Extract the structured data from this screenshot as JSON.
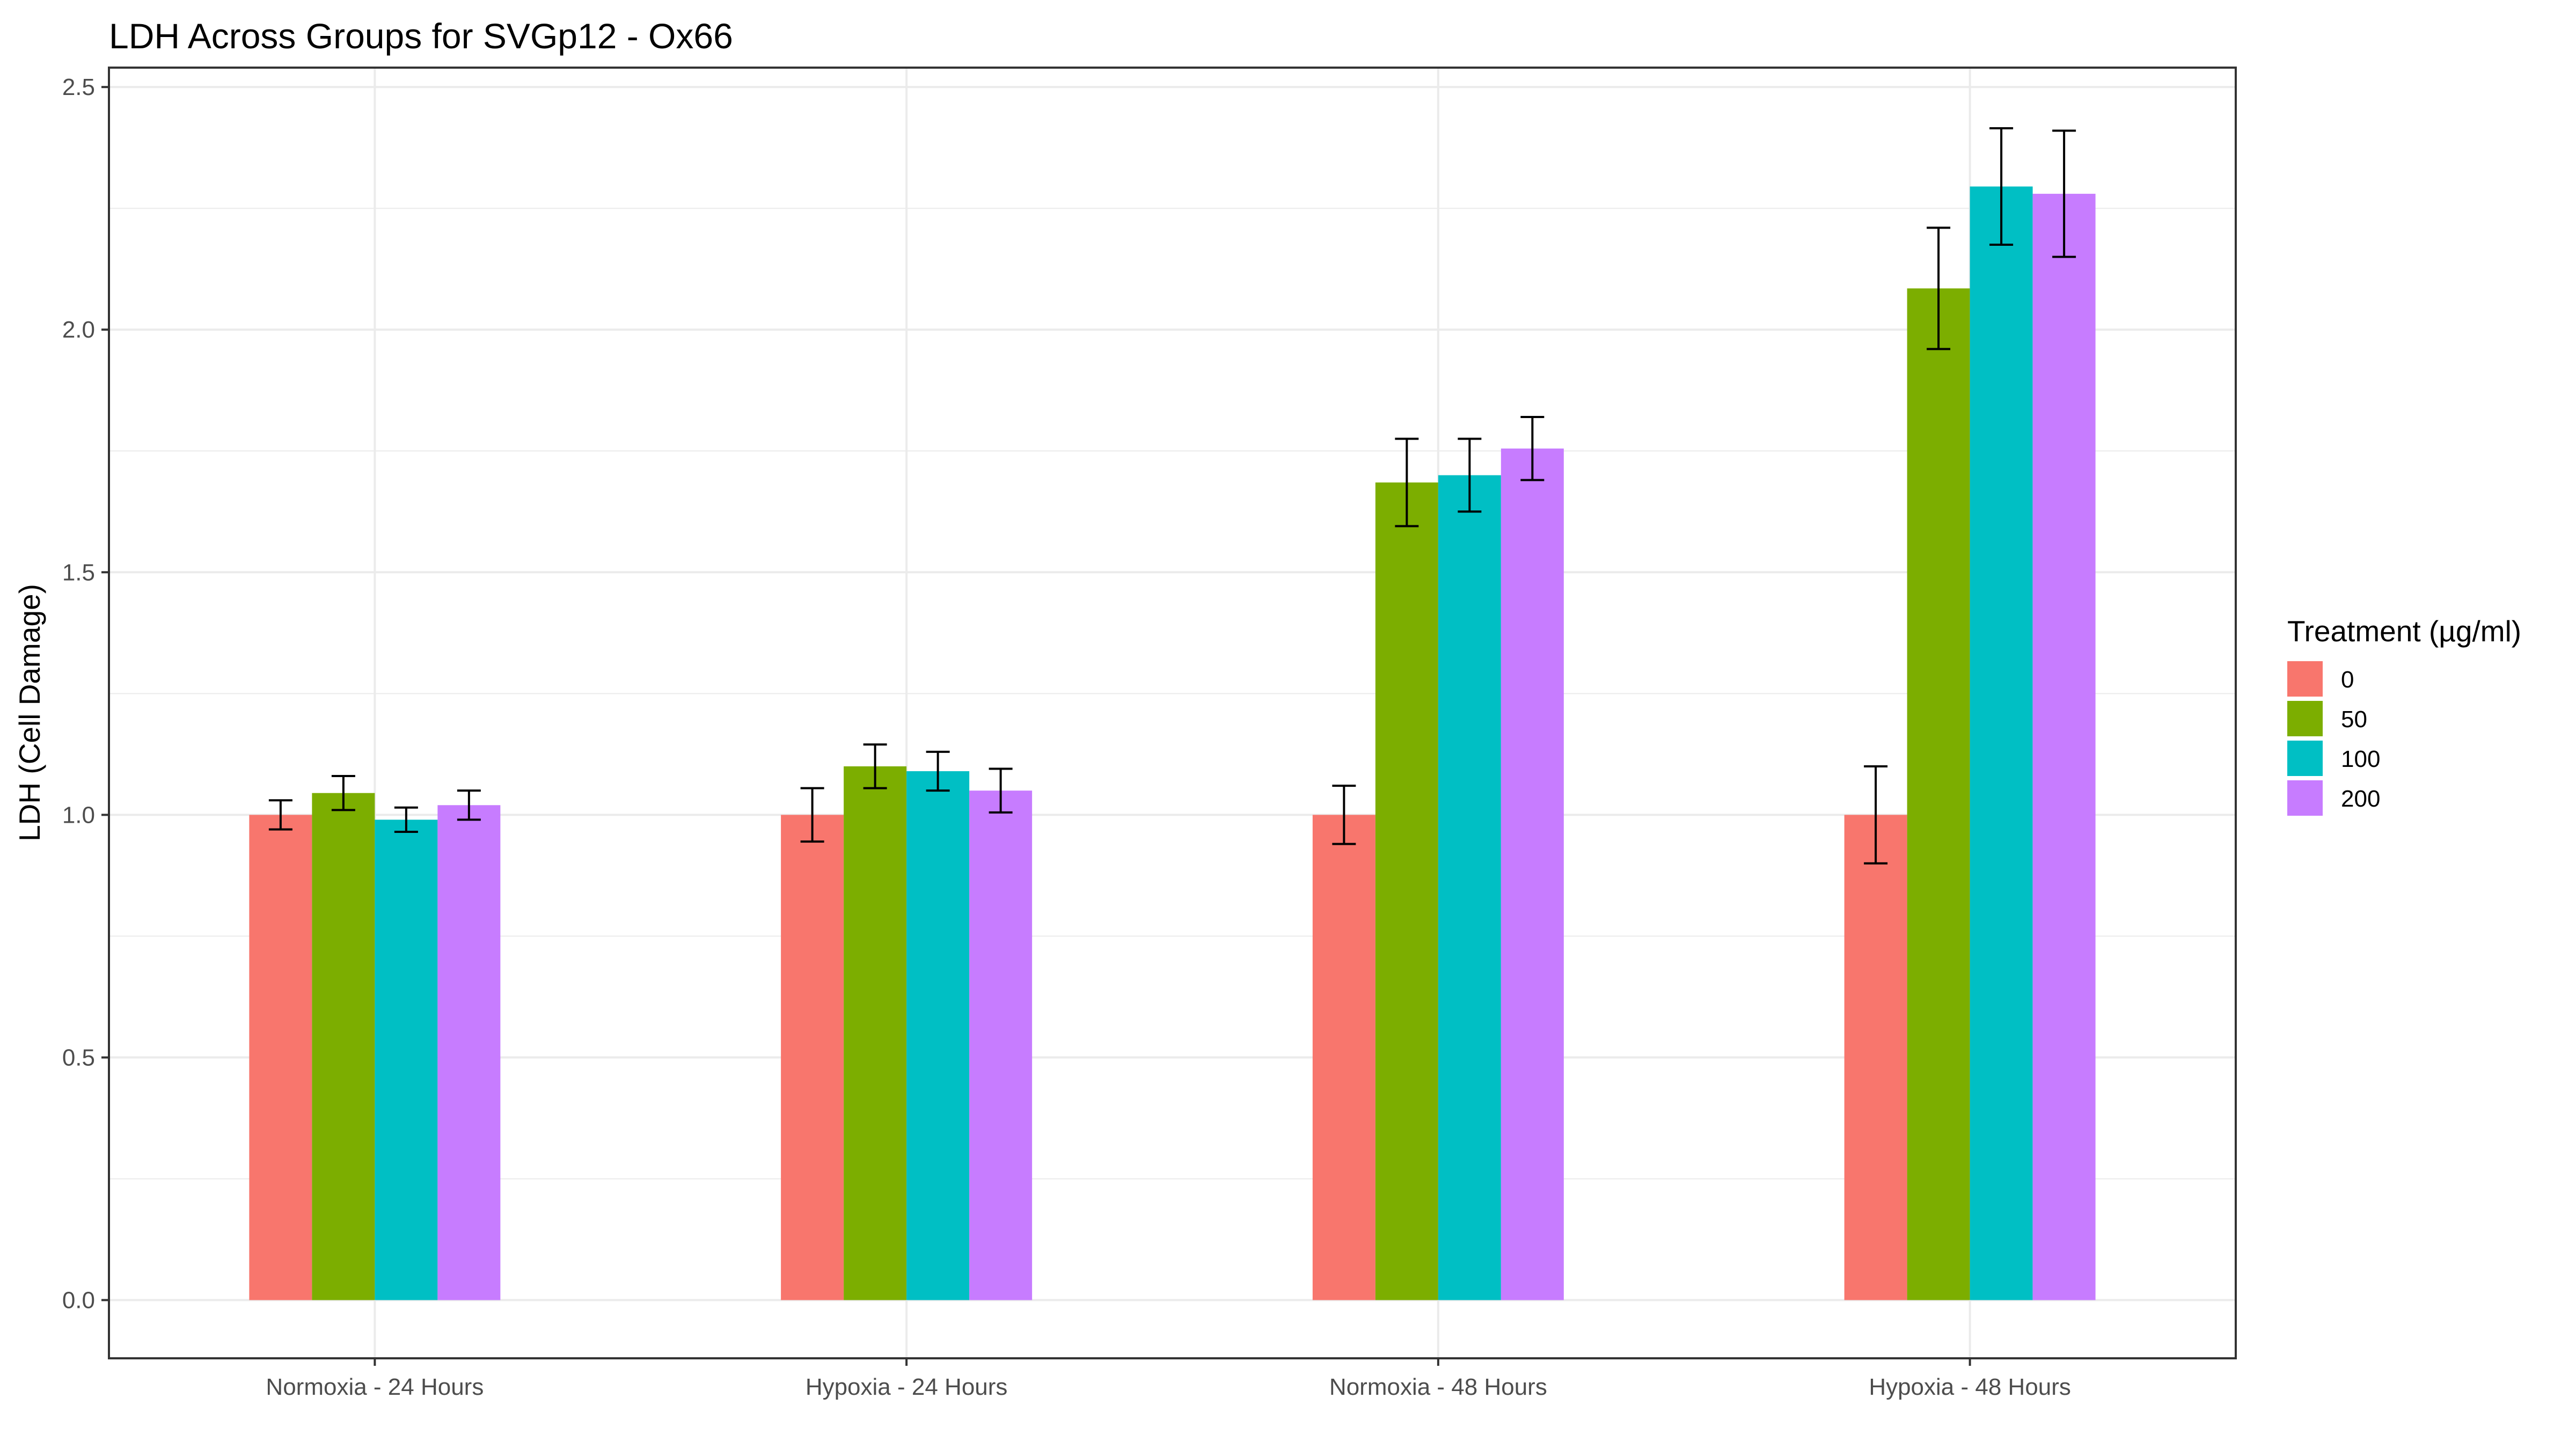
{
  "chart_data": {
    "type": "bar",
    "title": "LDH Across Groups for SVGp12 - Ox66",
    "xlabel": "",
    "ylabel": "LDH (Cell Damage)",
    "ylim": [
      -0.12,
      2.54
    ],
    "yticks": [
      0.0,
      0.5,
      1.0,
      1.5,
      2.0,
      2.5
    ],
    "ytick_labels": [
      "0.0",
      "0.5",
      "1.0",
      "1.5",
      "2.0",
      "2.5"
    ],
    "grid": true,
    "categories": [
      "Normoxia - 24 Hours",
      "Hypoxia - 24 Hours",
      "Normoxia - 48 Hours",
      "Hypoxia - 48 Hours"
    ],
    "legend": {
      "title": "Treatment (µg/ml)",
      "position": "right"
    },
    "series": [
      {
        "name": "0",
        "color": "#F8766D",
        "values": [
          1.0,
          1.0,
          1.0,
          1.0
        ],
        "errors": [
          0.03,
          0.055,
          0.06,
          0.1
        ]
      },
      {
        "name": "50",
        "color": "#7CAE00",
        "values": [
          1.045,
          1.1,
          1.685,
          2.085
        ],
        "errors": [
          0.035,
          0.045,
          0.09,
          0.125
        ]
      },
      {
        "name": "100",
        "color": "#00BFC4",
        "values": [
          0.99,
          1.09,
          1.7,
          2.295
        ],
        "errors": [
          0.025,
          0.04,
          0.075,
          0.12
        ]
      },
      {
        "name": "200",
        "color": "#C77CFF",
        "values": [
          1.02,
          1.05,
          1.755,
          2.28
        ],
        "errors": [
          0.03,
          0.045,
          0.065,
          0.13
        ]
      }
    ]
  }
}
